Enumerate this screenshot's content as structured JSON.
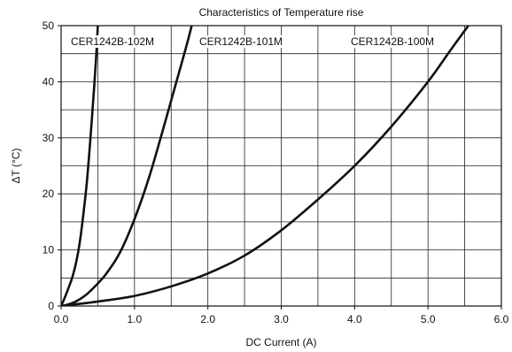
{
  "chart_data": {
    "type": "line",
    "title": "Characteristics of Temperature rise",
    "xlabel": "DC Current (A)",
    "ylabel": "ΔT (°C)",
    "xlim": [
      0,
      6
    ],
    "ylim": [
      0,
      50
    ],
    "x_ticks": [
      "0.0",
      "1.0",
      "2.0",
      "3.0",
      "4.0",
      "5.0",
      "6.0"
    ],
    "y_ticks": [
      "0",
      "10",
      "20",
      "30",
      "40",
      "50"
    ],
    "grid": true,
    "series": [
      {
        "name": "CER1242B-102M",
        "color": "#111111",
        "x": [
          0.0,
          0.05,
          0.1,
          0.15,
          0.2,
          0.25,
          0.3,
          0.35,
          0.4,
          0.45,
          0.48,
          0.5
        ],
        "y": [
          0.0,
          1.5,
          3.2,
          5.0,
          7.5,
          11.0,
          16.0,
          22.0,
          30.0,
          39.0,
          45.0,
          50.0
        ]
      },
      {
        "name": "CER1242B-101M",
        "color": "#111111",
        "x": [
          0.0,
          0.1,
          0.2,
          0.3,
          0.4,
          0.6,
          0.8,
          1.0,
          1.2,
          1.4,
          1.55,
          1.7,
          1.78
        ],
        "y": [
          0.0,
          0.3,
          0.8,
          1.6,
          2.7,
          5.5,
          9.5,
          15.5,
          23.0,
          32.0,
          39.0,
          46.0,
          50.0
        ]
      },
      {
        "name": "CER1242B-100M",
        "color": "#111111",
        "x": [
          0.0,
          0.5,
          1.0,
          1.5,
          2.0,
          2.5,
          3.0,
          3.5,
          4.0,
          4.5,
          5.0,
          5.3,
          5.55
        ],
        "y": [
          0.0,
          0.8,
          1.8,
          3.5,
          5.8,
          9.0,
          13.5,
          19.0,
          25.0,
          32.0,
          40.0,
          45.5,
          50.0
        ]
      }
    ]
  }
}
